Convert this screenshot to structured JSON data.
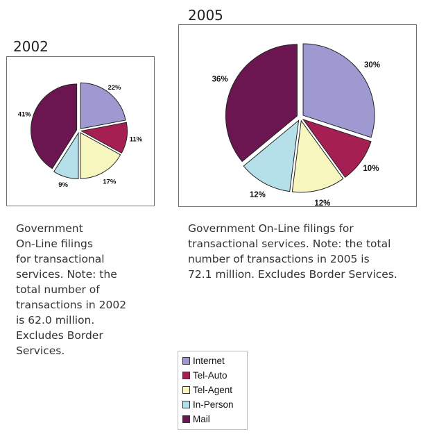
{
  "colors": {
    "Internet": "#9f99d2",
    "Tel-Auto": "#a51f52",
    "Tel-Agent": "#f7f6bf",
    "In-Person": "#b5e0ea",
    "Mail": "#6b1650",
    "outline": "#222222"
  },
  "chart_data": [
    {
      "type": "pie",
      "title": "2002",
      "unit": "%",
      "slices": [
        {
          "label": "Internet",
          "value": 22,
          "display": "22%"
        },
        {
          "label": "Tel-Auto",
          "value": 11,
          "display": "11%"
        },
        {
          "label": "Tel-Agent",
          "value": 17,
          "display": "17%"
        },
        {
          "label": "In-Person",
          "value": 9,
          "display": "9%"
        },
        {
          "label": "Mail",
          "value": 41,
          "display": "41%"
        }
      ],
      "caption": [
        "Government",
        "On-Line filings",
        "for transactional",
        "services. Note: the",
        "total number of",
        "transactions in 2002",
        "is 62.0 million.",
        "Excludes Border",
        "Services."
      ]
    },
    {
      "type": "pie",
      "title": "2005",
      "unit": "%",
      "slices": [
        {
          "label": "Internet",
          "value": 30,
          "display": "30%"
        },
        {
          "label": "Tel-Auto",
          "value": 10,
          "display": "10%"
        },
        {
          "label": "Tel-Agent",
          "value": 12,
          "display": "12%"
        },
        {
          "label": "In-Person",
          "value": 12,
          "display": "12%"
        },
        {
          "label": "Mail",
          "value": 36,
          "display": "36%"
        }
      ],
      "caption": [
        "Government On-Line filings for",
        "transactional services. Note: the total",
        "number of transactions in 2005 is",
        "72.1 million. Excludes Border Services."
      ]
    }
  ],
  "legend": {
    "items": [
      {
        "label": "Internet",
        "icon": "square-swatch"
      },
      {
        "label": "Tel-Auto",
        "icon": "square-swatch"
      },
      {
        "label": "Tel-Agent",
        "icon": "square-swatch"
      },
      {
        "label": "In-Person",
        "icon": "square-swatch"
      },
      {
        "label": "Mail",
        "icon": "square-swatch"
      }
    ]
  }
}
